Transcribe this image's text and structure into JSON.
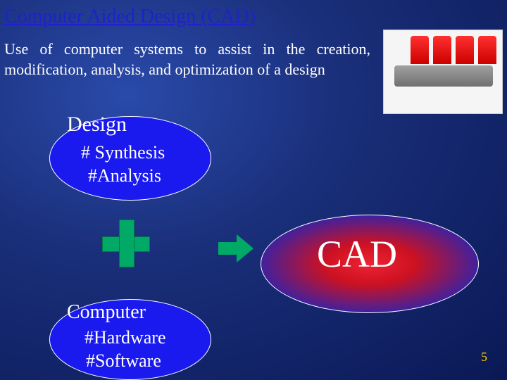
{
  "slide": {
    "title": "Computer Aided Design (CAD)",
    "body": "Use of computer systems to assist in the creation, modification, analysis, and optimization of a design",
    "page_number": "5",
    "background_gradient": {
      "inner": "#2a4aaa",
      "mid": "#1a2f7a",
      "outer": "#0a1855"
    },
    "title_color": "#2020cc",
    "body_color": "#ffffff",
    "page_number_color": "#ffcc00"
  },
  "design_bubble": {
    "heading": "Design",
    "item1": "# Synthesis",
    "item2": "#Analysis",
    "fill_color": "#1a1aee",
    "border_color": "#ffffff",
    "text_color": "#ffffff"
  },
  "computer_bubble": {
    "heading": "Computer",
    "item1": "#Hardware",
    "item2": "#Software",
    "fill_color": "#1a1aee",
    "border_color": "#ffffff",
    "text_color": "#ffffff"
  },
  "cad_bubble": {
    "label": "CAD",
    "gradient_inner": "#ee2233",
    "gradient_mid": "#cc1122",
    "gradient_outer": "#1a1866",
    "text_color": "#ffffff",
    "font_size": 54
  },
  "icons": {
    "plus_color": "#00aa66",
    "arrow_color": "#00aa66"
  },
  "cad_image": {
    "description": "crankshaft with four red pistons",
    "bg": "#f5f5f5",
    "shaft_color": "#808080",
    "piston_color": "#ee2020"
  }
}
